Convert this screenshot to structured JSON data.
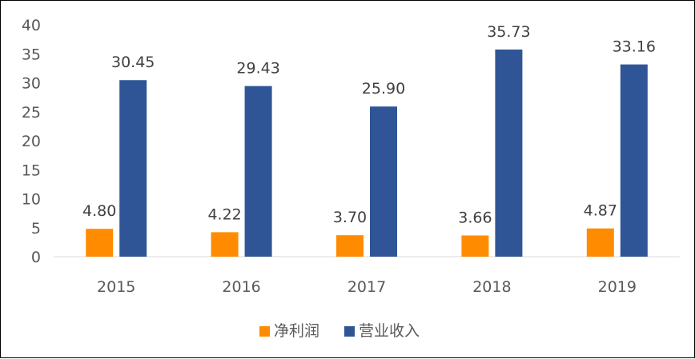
{
  "chart_data": {
    "type": "bar",
    "categories": [
      "2015",
      "2016",
      "2017",
      "2018",
      "2019"
    ],
    "series": [
      {
        "name": "净利润",
        "values": [
          4.8,
          4.22,
          3.7,
          3.66,
          4.87
        ],
        "color": "#FF8C00",
        "labels": [
          "4.80",
          "4.22",
          "3.70",
          "3.66",
          "4.87"
        ]
      },
      {
        "name": "营业收入",
        "values": [
          30.45,
          29.43,
          25.9,
          35.73,
          33.16
        ],
        "color": "#2F5597",
        "labels": [
          "30.45",
          "29.43",
          "25.90",
          "35.73",
          "33.16"
        ]
      }
    ],
    "ylim": [
      0,
      40
    ],
    "yticks": [
      "0",
      "5",
      "10",
      "15",
      "20",
      "25",
      "30",
      "35",
      "40"
    ],
    "grid": false,
    "legend_position": "bottom-center",
    "title": "",
    "xlabel": "",
    "ylabel": ""
  }
}
